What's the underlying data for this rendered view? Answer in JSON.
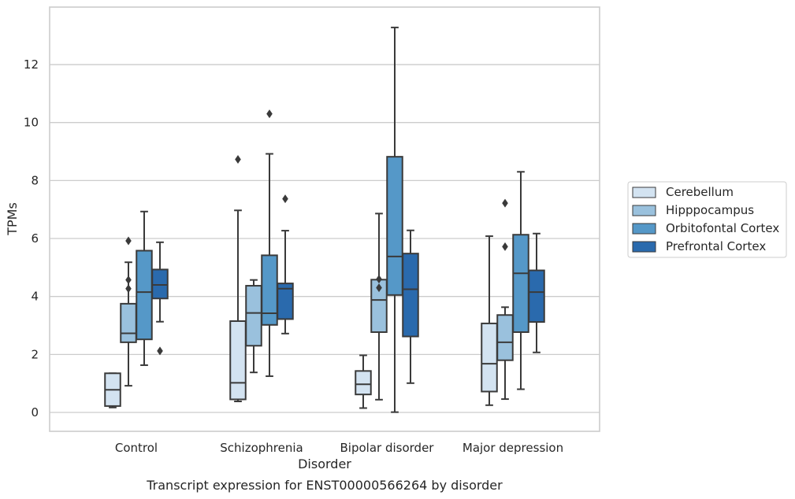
{
  "chart_data": {
    "type": "box",
    "title": "",
    "caption": "Transcript expression for ENST00000566264 by disorder",
    "xlabel": "Disorder",
    "ylabel": "TPMs",
    "ylim": [
      -0.65,
      13.9
    ],
    "yticks": [
      0,
      2,
      4,
      6,
      8,
      10,
      12
    ],
    "grid": true,
    "legend_position": "right",
    "categories": [
      "Control",
      "Schizophrenia",
      "Bipolar disorder",
      "Major depression"
    ],
    "series": [
      {
        "name": "Cerebellum",
        "color": "#d3e3f1",
        "boxes": [
          {
            "whislo": 0.17,
            "q1": 0.22,
            "med": 0.78,
            "q3": 1.35,
            "whishi": 1.35,
            "fliers": []
          },
          {
            "whislo": 0.38,
            "q1": 0.45,
            "med": 1.02,
            "q3": 3.15,
            "whishi": 6.97,
            "fliers": [
              8.73
            ]
          },
          {
            "whislo": 0.15,
            "q1": 0.62,
            "med": 0.97,
            "q3": 1.43,
            "whishi": 1.97,
            "fliers": []
          },
          {
            "whislo": 0.25,
            "q1": 0.72,
            "med": 1.68,
            "q3": 3.07,
            "whishi": 6.08,
            "fliers": []
          }
        ]
      },
      {
        "name": "Hipppocampus",
        "color": "#9ac1dd",
        "boxes": [
          {
            "whislo": 0.92,
            "q1": 2.42,
            "med": 2.73,
            "q3": 3.75,
            "whishi": 5.18,
            "fliers": [
              5.92,
              4.57,
              4.27
            ]
          },
          {
            "whislo": 1.38,
            "q1": 2.3,
            "med": 3.43,
            "q3": 4.37,
            "whishi": 4.57,
            "fliers": []
          },
          {
            "whislo": 0.44,
            "q1": 2.77,
            "med": 3.88,
            "q3": 4.58,
            "whishi": 6.86,
            "fliers": [
              4.6,
              4.3
            ]
          },
          {
            "whislo": 0.46,
            "q1": 1.8,
            "med": 2.42,
            "q3": 3.36,
            "whishi": 3.63,
            "fliers": [
              7.22,
              5.72
            ]
          }
        ]
      },
      {
        "name": "Orbitofontal Cortex",
        "color": "#5598c8",
        "boxes": [
          {
            "whislo": 1.63,
            "q1": 2.52,
            "med": 4.15,
            "q3": 5.58,
            "whishi": 6.93,
            "fliers": []
          },
          {
            "whislo": 1.25,
            "q1": 3.02,
            "med": 3.42,
            "q3": 5.42,
            "whishi": 8.92,
            "fliers": [
              10.3
            ]
          },
          {
            "whislo": 0.01,
            "q1": 4.05,
            "med": 5.38,
            "q3": 8.82,
            "whishi": 13.28,
            "fliers": []
          },
          {
            "whislo": 0.8,
            "q1": 2.77,
            "med": 4.8,
            "q3": 6.13,
            "whishi": 8.3,
            "fliers": []
          }
        ]
      },
      {
        "name": "Prefrontal Cortex",
        "color": "#2a6aad",
        "boxes": [
          {
            "whislo": 3.13,
            "q1": 3.93,
            "med": 4.4,
            "q3": 4.93,
            "whishi": 5.87,
            "fliers": [
              2.12
            ]
          },
          {
            "whislo": 2.72,
            "q1": 3.22,
            "med": 4.27,
            "q3": 4.45,
            "whishi": 6.27,
            "fliers": [
              7.37
            ]
          },
          {
            "whislo": 1.01,
            "q1": 2.62,
            "med": 4.25,
            "q3": 5.48,
            "whishi": 6.28,
            "fliers": []
          },
          {
            "whislo": 2.07,
            "q1": 3.12,
            "med": 4.15,
            "q3": 4.9,
            "whishi": 6.17,
            "fliers": []
          }
        ]
      }
    ]
  }
}
